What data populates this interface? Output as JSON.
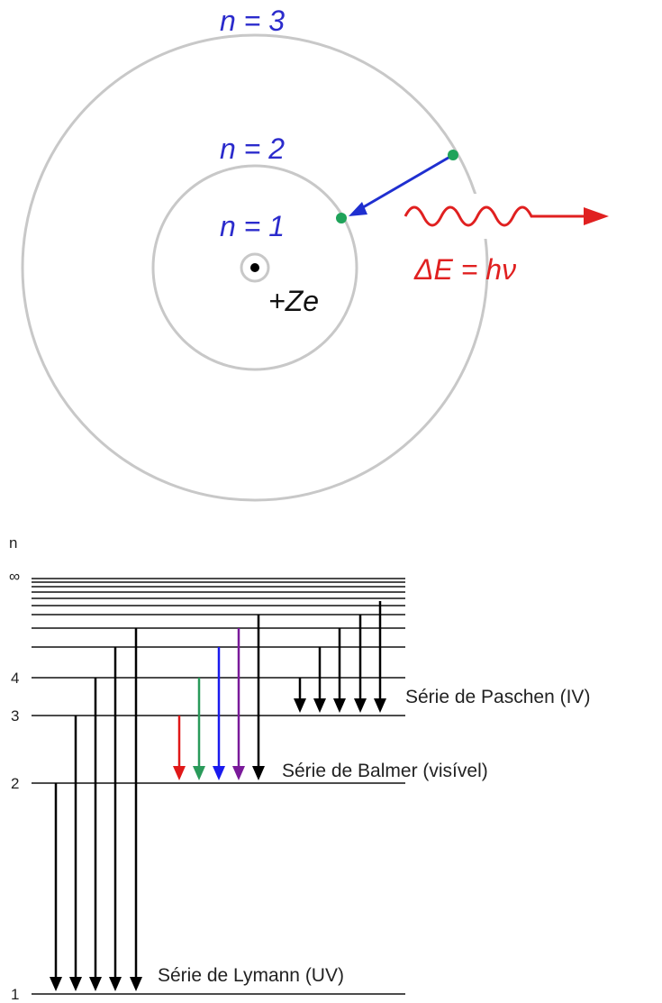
{
  "orbit_diagram": {
    "orbits": [
      "n = 1",
      "n = 2",
      "n = 3"
    ],
    "nucleus_label": "+Ze",
    "photon_label": "ΔE = hν"
  },
  "energy_levels": {
    "axis_label": "n",
    "level_labels": [
      "∞",
      "4",
      "3",
      "2",
      "1"
    ],
    "series": [
      "Série de Paschen (IV)",
      "Série de Balmer (visível)",
      "Série de Lymann (UV)"
    ]
  }
}
